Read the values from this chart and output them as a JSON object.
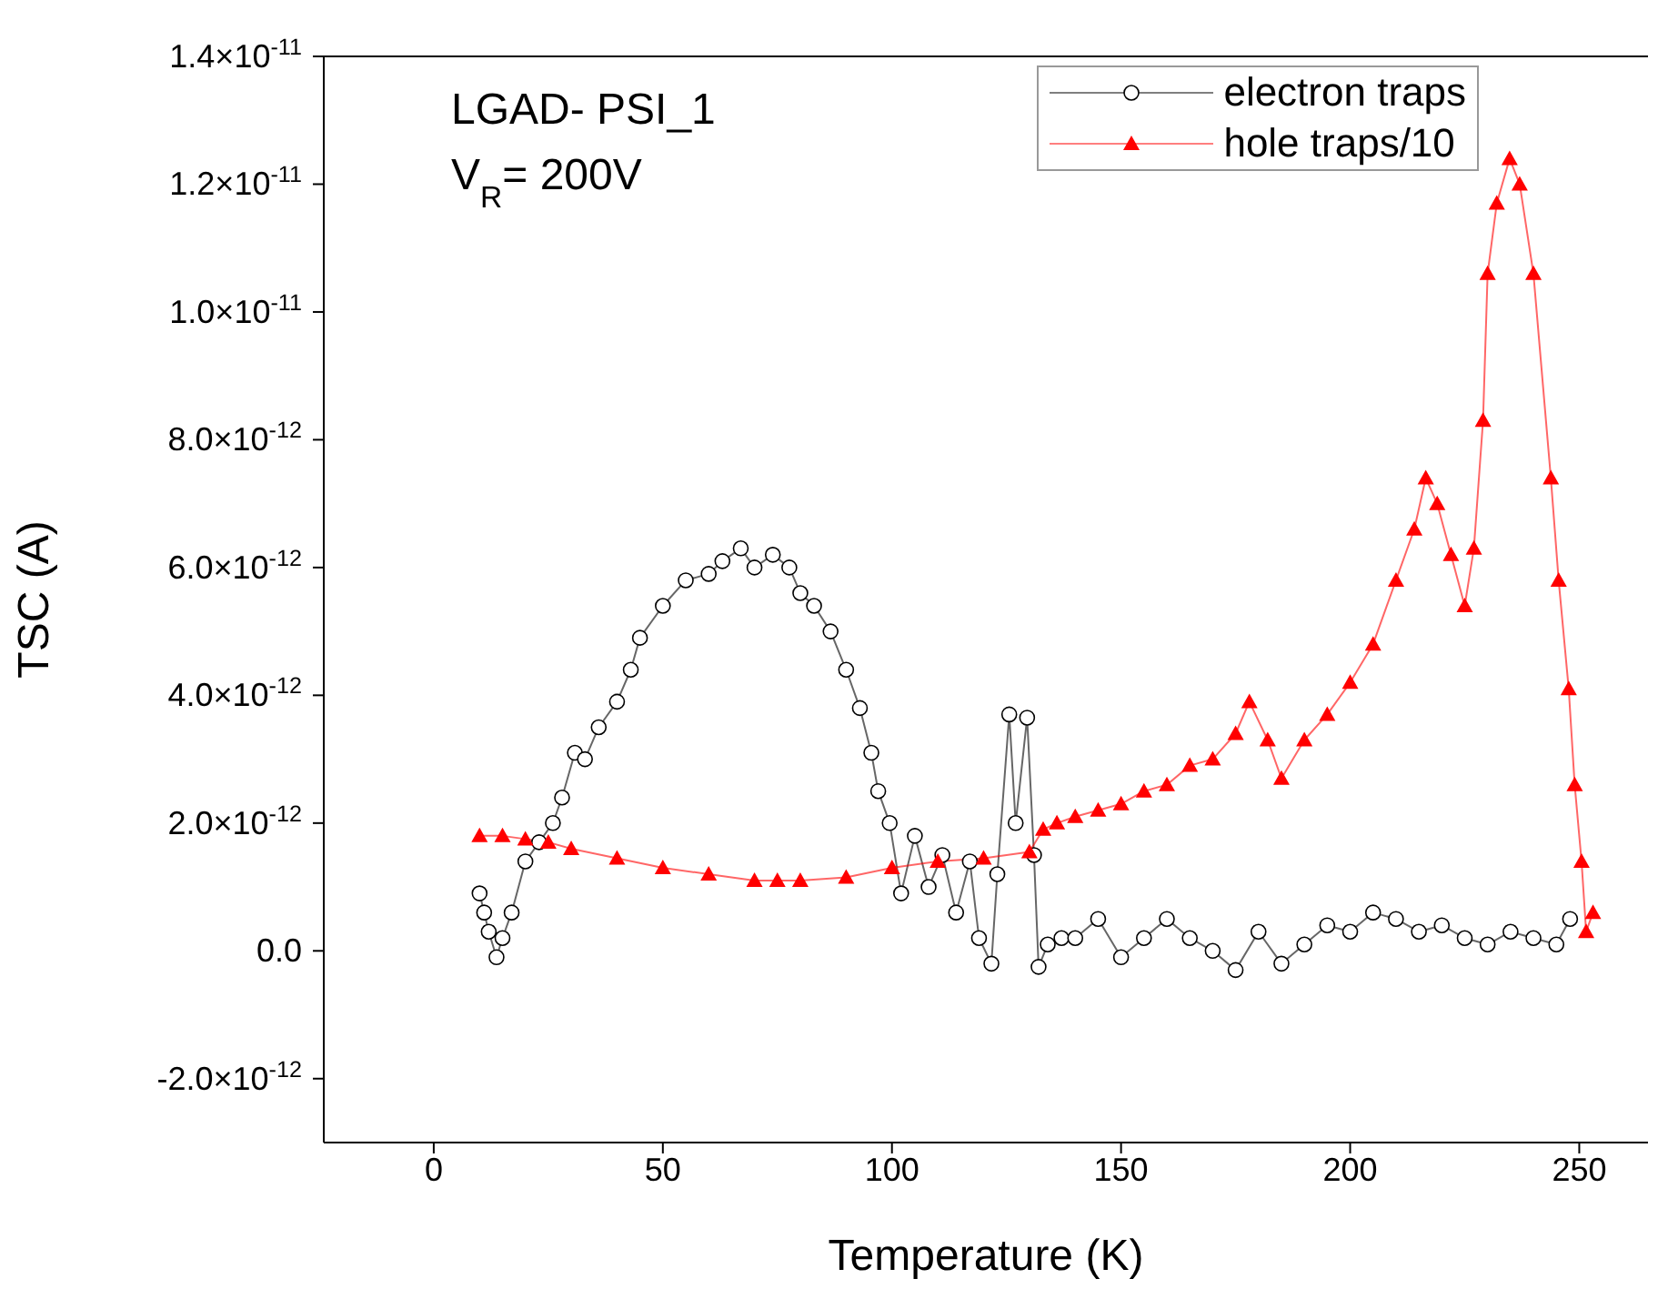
{
  "chart_data": {
    "type": "line",
    "xlabel": "Temperature (K)",
    "ylabel": "TSC (A)",
    "xlim": [
      -24,
      265
    ],
    "xticks": [
      0,
      50,
      100,
      150,
      200,
      250
    ],
    "ylim": [
      -3e-12,
      1.4e-11
    ],
    "yticks": [
      {
        "value": -2e-12,
        "label": "-2.0×10$^{-12}$"
      },
      {
        "value": 0,
        "label": "0.0"
      },
      {
        "value": 2e-12,
        "label": "2.0×10$^{-12}$"
      },
      {
        "value": 4e-12,
        "label": "4.0×10$^{-12}$"
      },
      {
        "value": 6e-12,
        "label": "6.0×10$^{-12}$"
      },
      {
        "value": 8e-12,
        "label": "8.0×10$^{-12}$"
      },
      {
        "value": 1e-11,
        "label": "1.0×10$^{-11}$"
      },
      {
        "value": 1.2e-11,
        "label": "1.2×10$^{-11}$"
      },
      {
        "value": 1.4e-11,
        "label": "1.4×10$^{-11}$"
      }
    ],
    "legend": "top right",
    "line_style": "solid",
    "annotations": [
      "LGAD- PSI_1",
      "V$_{R}$= 200V"
    ],
    "series": [
      {
        "name": "electron traps",
        "color": "#000000",
        "marker": "circle",
        "x": [
          10,
          11,
          12,
          13.7,
          15,
          17,
          20,
          23,
          26,
          28,
          30.8,
          33,
          36,
          40,
          43,
          45,
          50,
          55,
          60,
          63,
          67,
          70,
          74,
          77.6,
          80,
          83,
          86.6,
          90,
          93,
          95.5,
          97,
          99.5,
          102,
          105,
          108,
          111,
          114,
          117,
          119,
          121.7,
          123,
          125.6,
          127,
          129.5,
          131,
          132,
          134,
          137,
          140,
          145,
          150,
          155,
          160,
          165,
          170,
          175,
          180,
          185,
          190,
          195,
          200,
          205,
          210,
          215,
          220,
          225,
          230,
          235,
          240,
          245,
          248
        ],
        "values": [
          9e-13,
          6e-13,
          3e-13,
          -1e-13,
          2e-13,
          6e-13,
          1.4e-12,
          1.7e-12,
          2e-12,
          2.4e-12,
          3.1e-12,
          3e-12,
          3.5e-12,
          3.9e-12,
          4.4e-12,
          4.9e-12,
          5.4e-12,
          5.8e-12,
          5.9e-12,
          6.1e-12,
          6.3e-12,
          6e-12,
          6.2e-12,
          6e-12,
          5.6e-12,
          5.4e-12,
          5e-12,
          4.4e-12,
          3.8e-12,
          3.1e-12,
          2.5e-12,
          2e-12,
          9e-13,
          1.8e-12,
          1e-12,
          1.5e-12,
          6e-13,
          1.4e-12,
          2e-13,
          -2e-13,
          1.2e-12,
          3.7e-12,
          2e-12,
          3.65e-12,
          1.5e-12,
          -2.5e-13,
          1e-13,
          2e-13,
          2e-13,
          5e-13,
          -1e-13,
          2e-13,
          5e-13,
          2e-13,
          0,
          -3e-13,
          3e-13,
          -2e-13,
          1e-13,
          4e-13,
          3e-13,
          6e-13,
          5e-13,
          3e-13,
          4e-13,
          2e-13,
          1e-13,
          3e-13,
          2e-13,
          1e-13,
          5e-13
        ]
      },
      {
        "name": "hole traps/10",
        "color": "#ff0000",
        "marker": "triangle",
        "x": [
          10,
          15,
          20,
          25,
          30,
          40,
          50,
          60,
          70,
          75,
          80,
          90,
          100,
          110,
          120,
          130,
          133,
          136,
          140,
          145,
          150,
          155,
          160,
          165,
          170,
          175,
          178,
          182,
          185,
          190,
          195,
          200,
          205,
          210,
          214,
          216.5,
          219,
          222,
          225,
          227,
          229,
          230,
          232,
          234.8,
          237,
          240,
          243.8,
          245.5,
          247.7,
          249,
          250.5,
          251.5,
          253
        ],
        "values": [
          1.8e-12,
          1.8e-12,
          1.75e-12,
          1.7e-12,
          1.6e-12,
          1.45e-12,
          1.3e-12,
          1.2e-12,
          1.1e-12,
          1.1e-12,
          1.1e-12,
          1.15e-12,
          1.3e-12,
          1.4e-12,
          1.45e-12,
          1.55e-12,
          1.9e-12,
          2e-12,
          2.1e-12,
          2.2e-12,
          2.3e-12,
          2.5e-12,
          2.6e-12,
          2.9e-12,
          3e-12,
          3.4e-12,
          3.9e-12,
          3.3e-12,
          2.7e-12,
          3.3e-12,
          3.7e-12,
          4.2e-12,
          4.8e-12,
          5.8e-12,
          6.6e-12,
          7.4e-12,
          7e-12,
          6.2e-12,
          5.4e-12,
          6.3e-12,
          8.3e-12,
          1.06e-11,
          1.17e-11,
          1.24e-11,
          1.2e-11,
          1.06e-11,
          7.4e-12,
          5.8e-12,
          4.1e-12,
          2.6e-12,
          1.4e-12,
          3e-13,
          6e-13
        ]
      }
    ]
  }
}
